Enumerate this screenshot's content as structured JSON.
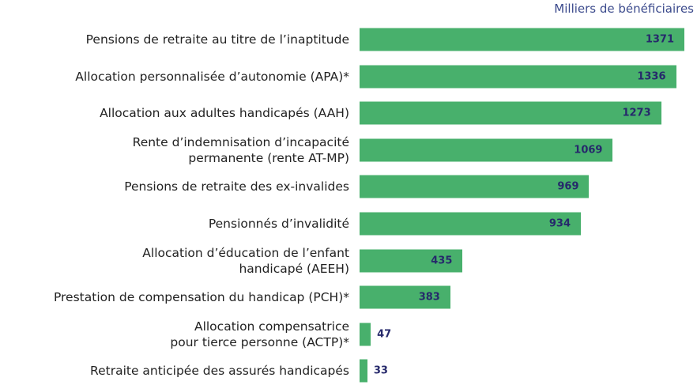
{
  "chart_data": {
    "type": "bar",
    "orientation": "horizontal",
    "subtitle": "Milliers de bénéficiaires",
    "categories": [
      "Pensions de retraite au titre de l’inaptitude",
      "Allocation personnalisée d’autonomie (APA)*",
      "Allocation aux adultes handicapés (AAH)",
      "Rente d’indemnisation d’incapacité\npermanente (rente AT-MP)",
      "Pensions de retraite des ex-invalides",
      "Pensionnés d’invalidité",
      "Allocation d’éducation de l’enfant\nhandicapé (AEEH)",
      "Prestation de compensation du handicap (PCH)*",
      "Allocation compensatrice\npour tierce personne (ACTP)*",
      "Retraite anticipée des assurés handicapés"
    ],
    "values": [
      1371,
      1336,
      1273,
      1069,
      969,
      934,
      435,
      383,
      47,
      33
    ],
    "color": "#48b06c",
    "value_label_color": "#26296b"
  }
}
